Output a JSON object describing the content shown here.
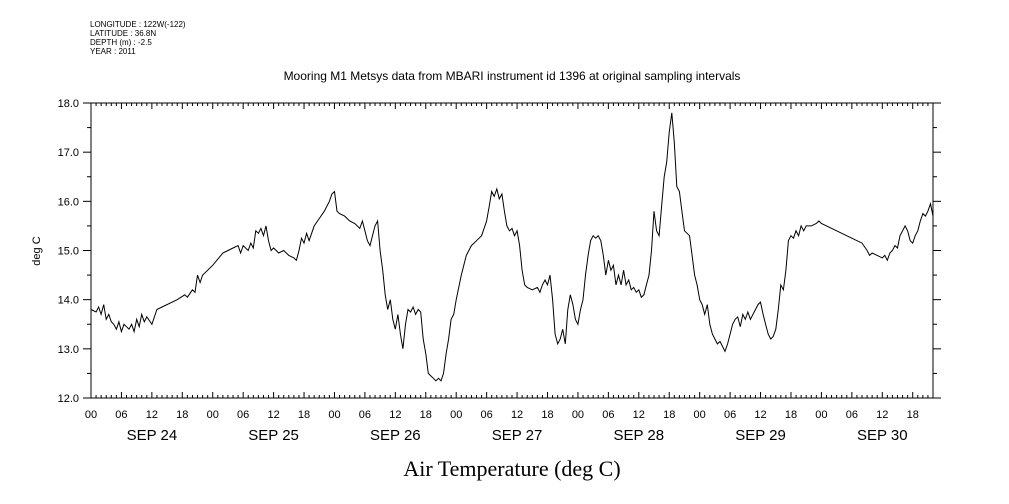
{
  "header": {
    "longitude": "LONGITUDE : 122W(-122)",
    "latitude": "LATITUDE : 36.8N",
    "depth": "DEPTH (m) : -2.5",
    "year": "YEAR : 2011"
  },
  "chart_data": {
    "type": "line",
    "title": "Mooring M1 Metsys data from MBARI instrument id 1396 at original sampling intervals",
    "xlabel": "Air Temperature (deg C)",
    "ylabel": "deg C",
    "ylim": [
      12.0,
      18.0
    ],
    "yticks": [
      "12.0",
      "13.0",
      "14.0",
      "15.0",
      "16.0",
      "17.0",
      "18.0"
    ],
    "x_unit": "hours since SEP 24 00:00",
    "xlim": [
      0,
      166
    ],
    "hour_tick_labels": [
      "00",
      "06",
      "12",
      "18"
    ],
    "day_labels": [
      "SEP 24",
      "SEP 25",
      "SEP 26",
      "SEP 27",
      "SEP 28",
      "SEP 29",
      "SEP 30"
    ],
    "grid": false,
    "series": [
      {
        "color": "#000000",
        "points": [
          [
            0,
            13.8
          ],
          [
            1,
            13.75
          ],
          [
            1.5,
            13.85
          ],
          [
            2,
            13.7
          ],
          [
            2.5,
            13.9
          ],
          [
            3,
            13.6
          ],
          [
            3.5,
            13.7
          ],
          [
            4,
            13.55
          ],
          [
            4.5,
            13.5
          ],
          [
            5,
            13.4
          ],
          [
            5.5,
            13.55
          ],
          [
            6,
            13.35
          ],
          [
            6.5,
            13.5
          ],
          [
            7,
            13.45
          ],
          [
            7.5,
            13.4
          ],
          [
            8,
            13.5
          ],
          [
            8.5,
            13.35
          ],
          [
            9,
            13.6
          ],
          [
            9.5,
            13.45
          ],
          [
            10,
            13.7
          ],
          [
            10.5,
            13.55
          ],
          [
            11,
            13.65
          ],
          [
            12,
            13.5
          ],
          [
            13,
            13.8
          ],
          [
            14,
            13.85
          ],
          [
            17,
            14.0
          ],
          [
            18.5,
            14.1
          ],
          [
            19,
            14.05
          ],
          [
            20,
            14.2
          ],
          [
            20.5,
            14.15
          ],
          [
            21,
            14.5
          ],
          [
            21.5,
            14.35
          ],
          [
            22,
            14.5
          ],
          [
            24,
            14.7
          ],
          [
            26,
            14.95
          ],
          [
            27,
            15.0
          ],
          [
            28,
            15.05
          ],
          [
            29,
            15.1
          ],
          [
            29.5,
            14.95
          ],
          [
            30,
            15.1
          ],
          [
            31,
            15.0
          ],
          [
            31.5,
            15.15
          ],
          [
            32,
            15.05
          ],
          [
            32.5,
            15.4
          ],
          [
            33,
            15.35
          ],
          [
            33.5,
            15.45
          ],
          [
            34,
            15.3
          ],
          [
            34.5,
            15.5
          ],
          [
            35,
            15.2
          ],
          [
            35.5,
            15.0
          ],
          [
            36,
            15.05
          ],
          [
            37,
            14.95
          ],
          [
            38,
            15.0
          ],
          [
            39,
            14.9
          ],
          [
            40,
            14.85
          ],
          [
            40.5,
            14.8
          ],
          [
            41,
            15.0
          ],
          [
            41.5,
            15.25
          ],
          [
            42,
            15.15
          ],
          [
            42.5,
            15.35
          ],
          [
            43,
            15.2
          ],
          [
            44,
            15.5
          ],
          [
            45,
            15.65
          ],
          [
            46,
            15.8
          ],
          [
            47,
            16.0
          ],
          [
            47.5,
            16.15
          ],
          [
            48,
            16.2
          ],
          [
            48.5,
            15.8
          ],
          [
            49,
            15.75
          ],
          [
            50,
            15.7
          ],
          [
            51,
            15.6
          ],
          [
            52,
            15.55
          ],
          [
            53,
            15.45
          ],
          [
            53.5,
            15.6
          ],
          [
            54,
            15.4
          ],
          [
            54.5,
            15.2
          ],
          [
            55,
            15.1
          ],
          [
            55.5,
            15.3
          ],
          [
            56,
            15.5
          ],
          [
            56.5,
            15.6
          ],
          [
            57,
            15.0
          ],
          [
            57.5,
            14.6
          ],
          [
            58,
            14.1
          ],
          [
            58.5,
            13.8
          ],
          [
            59,
            14.0
          ],
          [
            59.5,
            13.6
          ],
          [
            60,
            13.4
          ],
          [
            60.5,
            13.7
          ],
          [
            61,
            13.3
          ],
          [
            61.5,
            13.0
          ],
          [
            62,
            13.5
          ],
          [
            62.5,
            13.8
          ],
          [
            63,
            13.75
          ],
          [
            63.5,
            13.85
          ],
          [
            64,
            13.7
          ],
          [
            64.5,
            13.8
          ],
          [
            65,
            13.75
          ],
          [
            65.5,
            13.2
          ],
          [
            66,
            12.9
          ],
          [
            66.5,
            12.5
          ],
          [
            67,
            12.45
          ],
          [
            67.5,
            12.4
          ],
          [
            68,
            12.35
          ],
          [
            68.5,
            12.4
          ],
          [
            69,
            12.35
          ],
          [
            69.5,
            12.5
          ],
          [
            70,
            12.9
          ],
          [
            70.5,
            13.2
          ],
          [
            71,
            13.6
          ],
          [
            71.5,
            13.7
          ],
          [
            72,
            14.0
          ],
          [
            73,
            14.5
          ],
          [
            74,
            14.9
          ],
          [
            75,
            15.1
          ],
          [
            76,
            15.2
          ],
          [
            77,
            15.3
          ],
          [
            78,
            15.6
          ],
          [
            78.5,
            15.9
          ],
          [
            79,
            16.2
          ],
          [
            79.5,
            16.1
          ],
          [
            80,
            16.25
          ],
          [
            80.5,
            16.05
          ],
          [
            81,
            16.15
          ],
          [
            81.5,
            15.8
          ],
          [
            82,
            15.5
          ],
          [
            82.5,
            15.4
          ],
          [
            83,
            15.45
          ],
          [
            83.5,
            15.3
          ],
          [
            84,
            15.4
          ],
          [
            84.5,
            15.1
          ],
          [
            85,
            14.6
          ],
          [
            85.5,
            14.3
          ],
          [
            86,
            14.25
          ],
          [
            87,
            14.2
          ],
          [
            88,
            14.25
          ],
          [
            88.5,
            14.15
          ],
          [
            89,
            14.3
          ],
          [
            89.5,
            14.4
          ],
          [
            90,
            14.3
          ],
          [
            90.5,
            14.5
          ],
          [
            91,
            14.0
          ],
          [
            91.5,
            13.3
          ],
          [
            92,
            13.1
          ],
          [
            92.5,
            13.2
          ],
          [
            93,
            13.4
          ],
          [
            93.5,
            13.1
          ],
          [
            94,
            13.8
          ],
          [
            94.5,
            14.1
          ],
          [
            95,
            13.9
          ],
          [
            95.5,
            13.6
          ],
          [
            96,
            13.5
          ],
          [
            96.5,
            13.8
          ],
          [
            97,
            14.0
          ],
          [
            97.5,
            14.5
          ],
          [
            98,
            14.9
          ],
          [
            98.5,
            15.2
          ],
          [
            99,
            15.3
          ],
          [
            99.5,
            15.25
          ],
          [
            100,
            15.3
          ],
          [
            100.5,
            15.2
          ],
          [
            101,
            14.9
          ],
          [
            101.5,
            14.5
          ],
          [
            102,
            14.8
          ],
          [
            102.5,
            14.6
          ],
          [
            103,
            14.7
          ],
          [
            103.5,
            14.3
          ],
          [
            104,
            14.5
          ],
          [
            104.5,
            14.3
          ],
          [
            105,
            14.6
          ],
          [
            105.5,
            14.3
          ],
          [
            106,
            14.4
          ],
          [
            106.5,
            14.2
          ],
          [
            107,
            14.25
          ],
          [
            107.5,
            14.15
          ],
          [
            108,
            14.2
          ],
          [
            108.5,
            14.05
          ],
          [
            109,
            14.1
          ],
          [
            109.5,
            14.3
          ],
          [
            110,
            14.5
          ],
          [
            110.5,
            15.0
          ],
          [
            111,
            15.8
          ],
          [
            111.5,
            15.4
          ],
          [
            112,
            15.3
          ],
          [
            112.5,
            15.9
          ],
          [
            113,
            16.5
          ],
          [
            113.5,
            16.8
          ],
          [
            114,
            17.4
          ],
          [
            114.5,
            17.8
          ],
          [
            115,
            17.2
          ],
          [
            115.5,
            16.3
          ],
          [
            116,
            16.2
          ],
          [
            116.5,
            15.8
          ],
          [
            117,
            15.4
          ],
          [
            118,
            15.3
          ],
          [
            118.5,
            14.9
          ],
          [
            119,
            14.5
          ],
          [
            119.5,
            14.3
          ],
          [
            120,
            14.0
          ],
          [
            120.5,
            13.9
          ],
          [
            121,
            13.7
          ],
          [
            121.5,
            13.9
          ],
          [
            122,
            13.5
          ],
          [
            122.5,
            13.3
          ],
          [
            123,
            13.2
          ],
          [
            123.5,
            13.1
          ],
          [
            124,
            13.15
          ],
          [
            124.5,
            13.05
          ],
          [
            125,
            12.95
          ],
          [
            125.5,
            13.1
          ],
          [
            126,
            13.3
          ],
          [
            126.5,
            13.5
          ],
          [
            127,
            13.6
          ],
          [
            127.5,
            13.65
          ],
          [
            128,
            13.45
          ],
          [
            128.5,
            13.7
          ],
          [
            129,
            13.6
          ],
          [
            129.5,
            13.75
          ],
          [
            130,
            13.6
          ],
          [
            131,
            13.8
          ],
          [
            131.5,
            13.9
          ],
          [
            132,
            13.95
          ],
          [
            132.5,
            13.7
          ],
          [
            133,
            13.5
          ],
          [
            133.5,
            13.3
          ],
          [
            134,
            13.2
          ],
          [
            134.5,
            13.25
          ],
          [
            135,
            13.4
          ],
          [
            135.5,
            13.8
          ],
          [
            136,
            14.3
          ],
          [
            136.5,
            14.2
          ],
          [
            137,
            14.6
          ],
          [
            137.5,
            15.2
          ],
          [
            138,
            15.3
          ],
          [
            138.5,
            15.25
          ],
          [
            139,
            15.4
          ],
          [
            139.5,
            15.3
          ],
          [
            140,
            15.5
          ],
          [
            140.5,
            15.4
          ],
          [
            141,
            15.5
          ],
          [
            142,
            15.5
          ],
          [
            143,
            15.55
          ],
          [
            143.5,
            15.6
          ],
          [
            144,
            15.55
          ],
          [
            147,
            15.4
          ],
          [
            150,
            15.25
          ],
          [
            152,
            15.15
          ],
          [
            153,
            15.0
          ],
          [
            153.5,
            14.9
          ],
          [
            154,
            14.95
          ],
          [
            155,
            14.9
          ],
          [
            156,
            14.85
          ],
          [
            156.5,
            14.9
          ],
          [
            157,
            14.8
          ],
          [
            157.5,
            14.95
          ],
          [
            158,
            15.0
          ],
          [
            158.5,
            15.1
          ],
          [
            159,
            15.05
          ],
          [
            159.5,
            15.3
          ],
          [
            160,
            15.4
          ],
          [
            160.5,
            15.5
          ],
          [
            161,
            15.4
          ],
          [
            161.5,
            15.2
          ],
          [
            162,
            15.15
          ],
          [
            162.5,
            15.3
          ],
          [
            163,
            15.4
          ],
          [
            163.5,
            15.6
          ],
          [
            164,
            15.75
          ],
          [
            164.5,
            15.7
          ],
          [
            165,
            15.8
          ],
          [
            165.5,
            15.95
          ],
          [
            166,
            15.7
          ]
        ]
      }
    ]
  }
}
